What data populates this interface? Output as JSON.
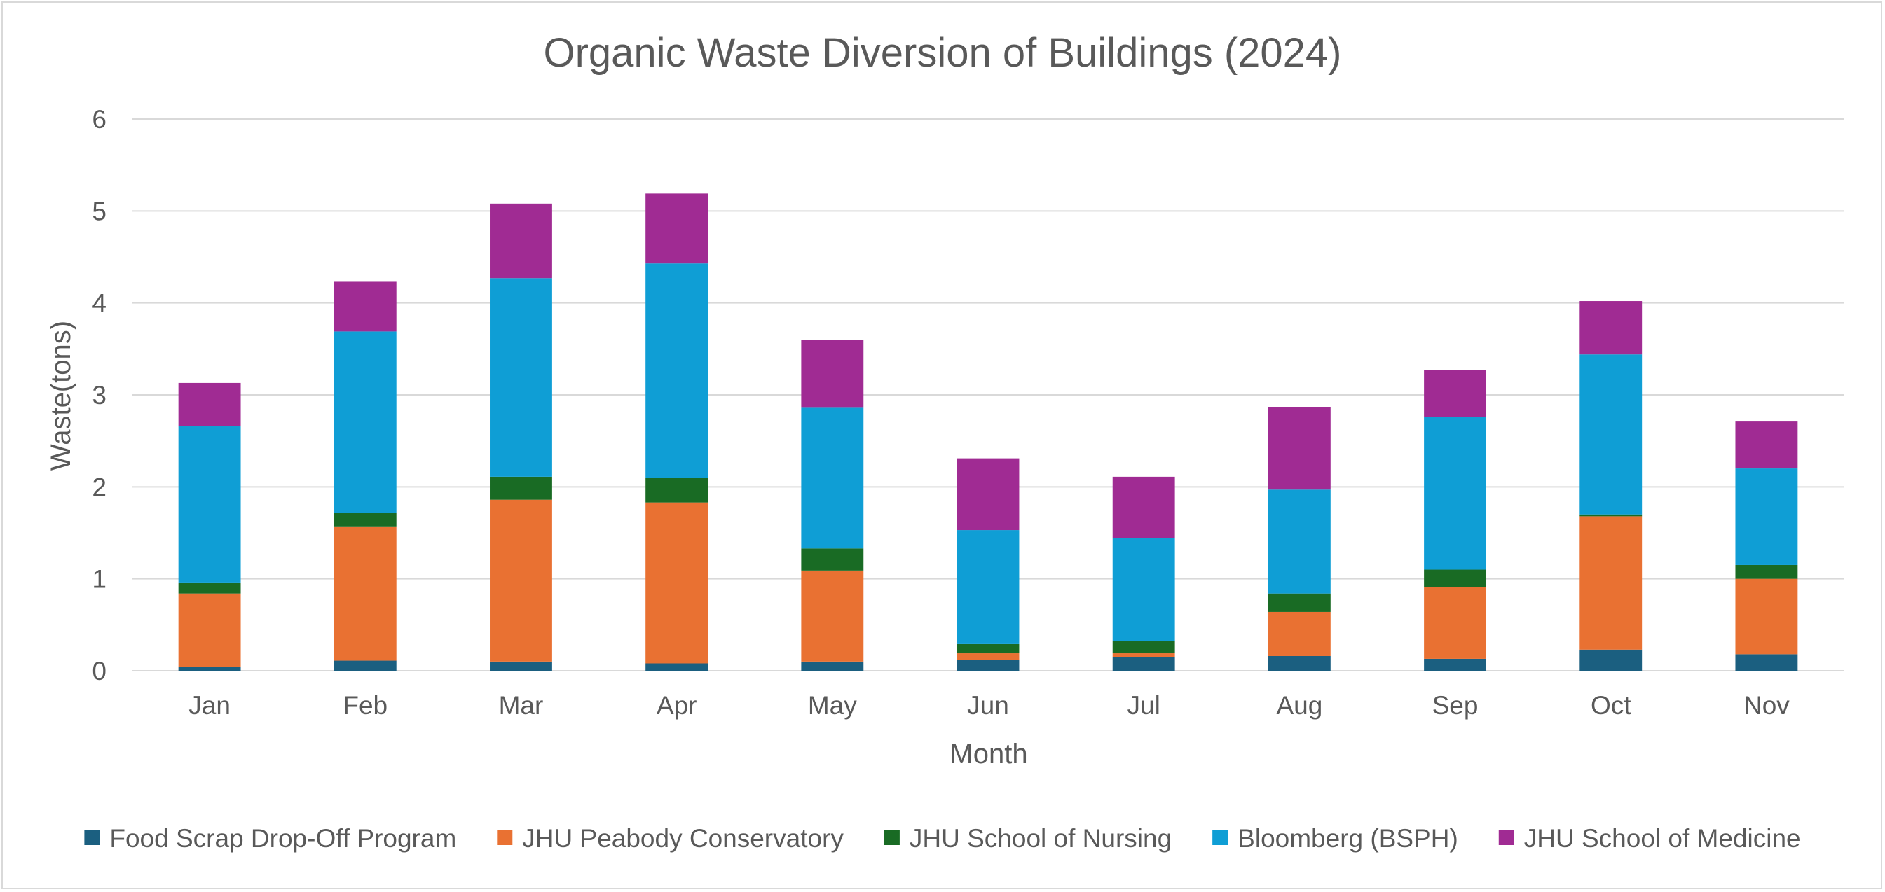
{
  "chart_data": {
    "type": "bar",
    "stacked": true,
    "title": "Organic Waste Diversion of Buildings (2024)",
    "xlabel": "Month",
    "ylabel": "Waste(tons)",
    "ylim": [
      0,
      6
    ],
    "yticks": [
      0,
      1,
      2,
      3,
      4,
      5,
      6
    ],
    "grid": true,
    "legend_position": "bottom",
    "categories": [
      "Jan",
      "Feb",
      "Mar",
      "Apr",
      "May",
      "Jun",
      "Jul",
      "Aug",
      "Sep",
      "Oct",
      "Nov"
    ],
    "series": [
      {
        "name": "Food Scrap Drop-Off Program",
        "color": "#1b5f80",
        "values": [
          0.04,
          0.11,
          0.1,
          0.08,
          0.1,
          0.12,
          0.15,
          0.16,
          0.13,
          0.23,
          0.18
        ]
      },
      {
        "name": "JHU Peabody Conservatory",
        "color": "#e97132",
        "values": [
          0.8,
          1.46,
          1.76,
          1.75,
          0.99,
          0.07,
          0.04,
          0.48,
          0.78,
          1.45,
          0.82
        ]
      },
      {
        "name": "JHU School of Nursing",
        "color": "#196b24",
        "values": [
          0.12,
          0.15,
          0.25,
          0.27,
          0.24,
          0.1,
          0.13,
          0.2,
          0.19,
          0.02,
          0.15
        ]
      },
      {
        "name": "Bloomberg (BSPH)",
        "color": "#0f9ed5",
        "values": [
          1.7,
          1.97,
          2.16,
          2.33,
          1.53,
          1.24,
          1.12,
          1.13,
          1.66,
          1.74,
          1.05
        ]
      },
      {
        "name": "JHU School of Medicine",
        "color": "#a02b93",
        "values": [
          0.47,
          0.54,
          0.81,
          0.76,
          0.74,
          0.78,
          0.67,
          0.9,
          0.51,
          0.58,
          0.51
        ]
      }
    ]
  }
}
